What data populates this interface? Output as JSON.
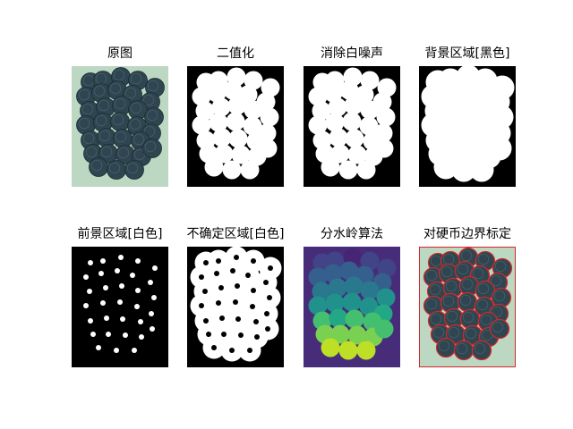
{
  "figure": {
    "panels": [
      {
        "id": "original",
        "title": "原图",
        "mode": "original"
      },
      {
        "id": "binary",
        "title": "二值化",
        "mode": "binary"
      },
      {
        "id": "denoise",
        "title": "消除白噪声",
        "mode": "binary"
      },
      {
        "id": "background",
        "title": "背景区域[黑色]",
        "mode": "background"
      },
      {
        "id": "foreground",
        "title": "前景区域[白色]",
        "mode": "foreground"
      },
      {
        "id": "unknown",
        "title": "不确定区域[白色]",
        "mode": "unknown"
      },
      {
        "id": "watershed",
        "title": "分水岭算法",
        "mode": "watershed"
      },
      {
        "id": "coin-boundaries",
        "title": "对硬币边界标定",
        "mode": "boundary"
      }
    ],
    "colors": {
      "paper": "#bcd8c2",
      "coin": "#2f4651",
      "coin_edge": "#1c2a31",
      "boundary": "#d62728",
      "watershed_bg": "#440154"
    }
  }
}
